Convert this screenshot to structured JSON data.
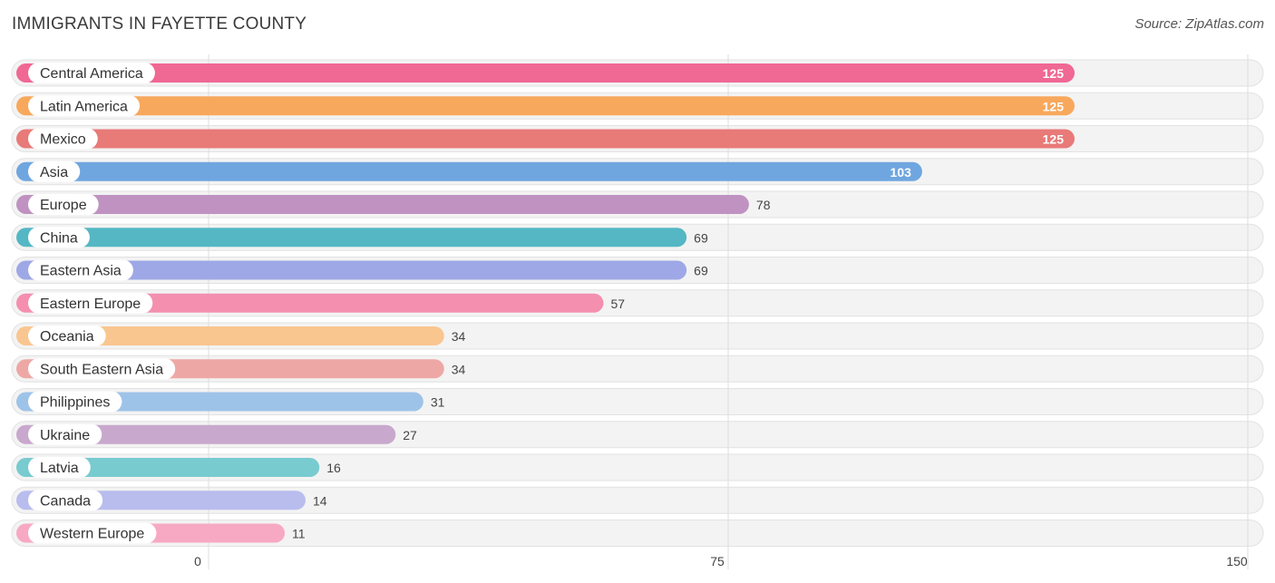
{
  "title": "IMMIGRANTS IN FAYETTE COUNTY",
  "source": "Source: ZipAtlas.com",
  "chart_data": {
    "type": "bar",
    "orientation": "horizontal",
    "title": "IMMIGRANTS IN FAYETTE COUNTY",
    "xlabel": "",
    "ylabel": "",
    "xlim": [
      0,
      150
    ],
    "xticks": [
      0,
      75,
      150
    ],
    "grid": true,
    "categories": [
      "Central America",
      "Latin America",
      "Mexico",
      "Asia",
      "Europe",
      "China",
      "Eastern Asia",
      "Eastern Europe",
      "Oceania",
      "South Eastern Asia",
      "Philippines",
      "Ukraine",
      "Latvia",
      "Canada",
      "Western Europe"
    ],
    "values": [
      125,
      125,
      125,
      103,
      78,
      69,
      69,
      57,
      34,
      34,
      31,
      27,
      16,
      14,
      11
    ],
    "colors": [
      "#f06894",
      "#f8a85c",
      "#e87a78",
      "#6fa6e0",
      "#bf92c2",
      "#55b7c4",
      "#9ea8e6",
      "#f48fb0",
      "#f9c690",
      "#eda8a6",
      "#9ec3e8",
      "#c9a8cd",
      "#78cbcf",
      "#b8bdee",
      "#f7a9c4"
    ]
  }
}
